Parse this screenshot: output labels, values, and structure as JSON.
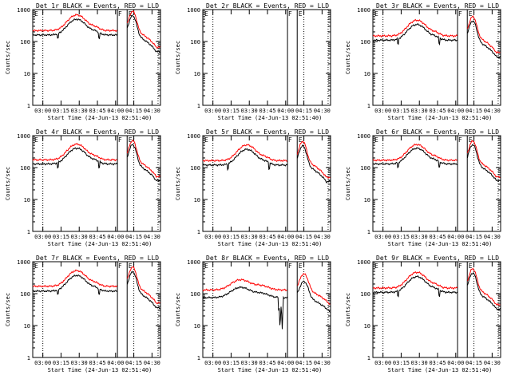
{
  "colors": {
    "events": "#000000",
    "lld": "#ff0000",
    "background": "#ffffff",
    "frame": "#000000"
  },
  "shared": {
    "xlabel": "Start Time (24-Jun-13 02:51:40)",
    "ylabel": "Counts/sec",
    "x_ticks": [
      "03:00",
      "03:15",
      "03:30",
      "03:45",
      "04:00",
      "04:15",
      "04:30"
    ],
    "x_ticks_hhmm": [
      180,
      195,
      210,
      225,
      240,
      255,
      270
    ],
    "xlim_minutes": [
      171.67,
      277
    ],
    "y_ticks": [
      "1",
      "10",
      "100",
      "1000"
    ],
    "ylim": [
      1,
      1000
    ],
    "y_scale": "log",
    "dotted_vlines_minutes": [
      180,
      255,
      275
    ],
    "solid_vlines_minutes": [
      241.5,
      249.5
    ],
    "region_markers": [
      {
        "text": "F",
        "minute": 242
      },
      {
        "text": "E",
        "minute": 250.5
      }
    ],
    "corner_marker": "E"
  },
  "chart_data": [
    {
      "type": "line",
      "title": "Det 1r BLACK = Events, RED = LLD",
      "has_data": true,
      "variant": "A",
      "series": [
        {
          "name": "Events",
          "base": 160
        },
        {
          "name": "LLD",
          "base": 220
        }
      ]
    },
    {
      "type": "line",
      "title": "Det 2r BLACK = Events, RED = LLD",
      "has_data": false,
      "variant": "A",
      "series": []
    },
    {
      "type": "line",
      "title": "Det 3r BLACK = Events, RED = LLD",
      "has_data": true,
      "variant": "A",
      "series": [
        {
          "name": "Events",
          "base": 110
        },
        {
          "name": "LLD",
          "base": 150
        }
      ]
    },
    {
      "type": "line",
      "title": "Det 4r BLACK = Events, RED = LLD",
      "has_data": true,
      "variant": "A",
      "series": [
        {
          "name": "Events",
          "base": 130
        },
        {
          "name": "LLD",
          "base": 175
        }
      ]
    },
    {
      "type": "line",
      "title": "Det 5r BLACK = Events, RED = LLD",
      "has_data": true,
      "variant": "A",
      "series": [
        {
          "name": "Events",
          "base": 120
        },
        {
          "name": "LLD",
          "base": 165
        }
      ]
    },
    {
      "type": "line",
      "title": "Det 6r BLACK = Events, RED = LLD",
      "has_data": true,
      "variant": "A",
      "series": [
        {
          "name": "Events",
          "base": 130
        },
        {
          "name": "LLD",
          "base": 170
        }
      ]
    },
    {
      "type": "line",
      "title": "Det 7r BLACK = Events, RED = LLD",
      "has_data": true,
      "variant": "A",
      "series": [
        {
          "name": "Events",
          "base": 120
        },
        {
          "name": "LLD",
          "base": 170
        }
      ]
    },
    {
      "type": "line",
      "title": "Det 8r BLACK = Events, RED = LLD",
      "has_data": true,
      "variant": "B",
      "series": [
        {
          "name": "Events",
          "base": 75
        },
        {
          "name": "LLD",
          "base": 130
        }
      ]
    },
    {
      "type": "line",
      "title": "Det 9r BLACK = Events, RED = LLD",
      "has_data": true,
      "variant": "A",
      "series": [
        {
          "name": "Events",
          "base": 110
        },
        {
          "name": "LLD",
          "base": 150
        }
      ]
    }
  ]
}
